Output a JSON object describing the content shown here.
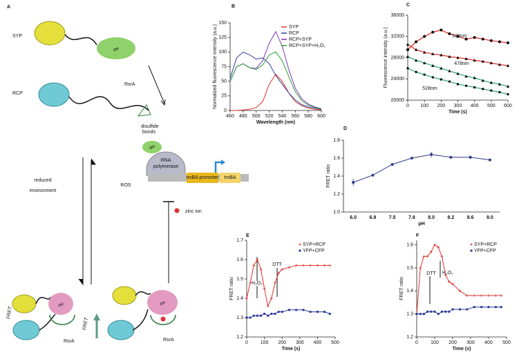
{
  "diagram": {
    "label": "A",
    "syp": "SYP",
    "rcp": "RCP",
    "sigma": "σᴿ",
    "rsra": "RsrA",
    "disulfide": [
      "disulfide",
      "bonds"
    ],
    "polymerase": [
      "RNA",
      "polymerase"
    ],
    "promoter": "trxBA promoter",
    "gene": "trxBA",
    "reduced": [
      "reduced",
      "environment"
    ],
    "ros": "ROS",
    "fret": "FRET",
    "zinc": "zinc ion"
  },
  "chart_data": [
    {
      "label": "B",
      "type": "line",
      "xlabel": "Wavelength (nm)",
      "ylabel": "Normalized fluorescence intensity (a.u.)",
      "x": [
        460,
        470,
        480,
        490,
        500,
        510,
        520,
        530,
        540,
        550,
        560,
        570,
        580,
        590,
        600
      ],
      "xlim": [
        460,
        600
      ],
      "xticks": [
        460,
        480,
        500,
        520,
        540,
        560,
        580,
        600
      ],
      "ylim": [
        0,
        150
      ],
      "yticks": [
        0,
        25,
        50,
        75,
        100,
        125,
        150
      ],
      "legend": "upper right",
      "series": [
        {
          "name": "SYP",
          "color": "#e0302a",
          "values": [
            0,
            0,
            1,
            2,
            5,
            15,
            45,
            62,
            50,
            30,
            15,
            8,
            4,
            2,
            1
          ]
        },
        {
          "name": "RCP",
          "color": "#2b3b9a",
          "values": [
            55,
            90,
            100,
            95,
            88,
            90,
            80,
            60,
            45,
            30,
            18,
            10,
            6,
            4,
            2
          ]
        },
        {
          "name": "RCP+SYP",
          "color": "#7a35b8",
          "values": [
            50,
            75,
            80,
            73,
            72,
            85,
            115,
            135,
            110,
            70,
            38,
            20,
            11,
            6,
            3
          ]
        },
        {
          "name": "RCP+SYP+H₂O₂",
          "color": "#2a9a3a",
          "values": [
            50,
            75,
            80,
            73,
            70,
            78,
            95,
            100,
            85,
            58,
            32,
            17,
            9,
            5,
            3
          ]
        }
      ]
    },
    {
      "label": "C",
      "type": "line",
      "xlabel": "Time (s)",
      "ylabel": "Fluorescence intensity (a.u.)",
      "x": [
        0,
        50,
        100,
        150,
        200,
        250,
        300,
        350,
        400,
        450,
        500,
        550,
        600
      ],
      "xlim": [
        0,
        600
      ],
      "xticks": [
        0,
        100,
        200,
        300,
        400,
        500,
        600
      ],
      "ylim": [
        20000,
        36000
      ],
      "yticks": [
        20000,
        24000,
        28000,
        32000,
        36000
      ],
      "marker_color": "#000000",
      "annotations": [
        "528nm",
        "478nm",
        "528nm"
      ],
      "series": [
        {
          "color": "#e0302a",
          "marker": "circle",
          "values": [
            29500,
            31000,
            32000,
            32800,
            33200,
            32500,
            32000,
            31500,
            31800,
            31500,
            31200,
            31000,
            30800
          ]
        },
        {
          "color": "#e0302a",
          "marker": "triangle",
          "values": [
            30500,
            29500,
            29000,
            28700,
            28500,
            28200,
            28000,
            27800,
            27500,
            27300,
            27000,
            26700,
            26500
          ]
        },
        {
          "color": "#3aa87a",
          "marker": "triangle",
          "values": [
            28200,
            27500,
            27000,
            26500,
            26000,
            25500,
            25000,
            24500,
            24200,
            23700,
            23300,
            23000,
            22600
          ]
        },
        {
          "color": "#3aa87a",
          "marker": "square",
          "values": [
            26000,
            25300,
            24800,
            24300,
            23900,
            23500,
            23000,
            22700,
            22400,
            22100,
            21800,
            21500,
            21100
          ]
        }
      ]
    },
    {
      "label": "D",
      "type": "line",
      "xlabel": "pH",
      "ylabel": "FRET ratio",
      "categories": [
        "6.0",
        "6.9",
        "7.5",
        "7.8",
        "8.0",
        "8.2",
        "8.6",
        "9.0"
      ],
      "values": [
        1.33,
        1.41,
        1.53,
        1.6,
        1.64,
        1.61,
        1.61,
        1.58
      ],
      "error": [
        0.04,
        0.01,
        0.01,
        0.01,
        0.03,
        0.01,
        0.02,
        0.01
      ],
      "color": "#2e3a87",
      "marker": "circle",
      "ylim": [
        1,
        1.8
      ],
      "yticks": [
        {
          "value": 1,
          "label": "1.0"
        },
        1.2,
        1.4,
        1.6,
        1.8
      ]
    },
    {
      "label": "E",
      "type": "line",
      "xlabel": "Time (s)",
      "ylabel": "FRET ratio",
      "x": [
        0,
        20,
        40,
        60,
        80,
        100,
        120,
        140,
        160,
        180,
        200,
        240,
        280,
        320,
        360,
        400,
        440,
        470
      ],
      "xlim": [
        0,
        500
      ],
      "xticks": [
        0,
        100,
        200,
        300,
        400,
        500
      ],
      "ylim": [
        1.2,
        1.7
      ],
      "yticks": [
        1.2,
        1.3,
        1.4,
        1.5,
        1.6,
        1.7
      ],
      "legend": "upper right",
      "annotations": [
        "H₂O₂",
        "DTT"
      ],
      "series": [
        {
          "name": "SYP+RCP",
          "color": "#e0302a",
          "marker": "cross",
          "values": [
            1.4,
            1.48,
            1.57,
            1.6,
            1.55,
            1.45,
            1.36,
            1.4,
            1.48,
            1.53,
            1.55,
            1.56,
            1.57,
            1.57,
            1.57,
            1.57,
            1.57,
            1.57
          ]
        },
        {
          "name": "YFP+CFP",
          "color": "#2b3b9a",
          "marker": "square",
          "values": [
            1.3,
            1.3,
            1.31,
            1.31,
            1.31,
            1.32,
            1.31,
            1.32,
            1.32,
            1.33,
            1.33,
            1.34,
            1.34,
            1.34,
            1.33,
            1.33,
            1.33,
            1.32
          ]
        }
      ]
    },
    {
      "label": "F",
      "type": "line",
      "xlabel": "Time (s)",
      "ylabel": "FRET ratio",
      "x": [
        0,
        20,
        40,
        60,
        80,
        100,
        120,
        140,
        160,
        180,
        200,
        240,
        280,
        320,
        360,
        400,
        440,
        470
      ],
      "xlim": [
        0,
        500
      ],
      "xticks": [
        0,
        100,
        200,
        300,
        400,
        500
      ],
      "ylim": [
        1.2,
        1.62
      ],
      "yticks": [
        1.2,
        1.3,
        1.4,
        1.5,
        1.6
      ],
      "legend": "upper right",
      "annotations": [
        "DTT",
        "H₂O₂"
      ],
      "series": [
        {
          "name": "SYP+RCP",
          "color": "#e0302a",
          "marker": "cross",
          "values": [
            1.3,
            1.5,
            1.55,
            1.55,
            1.57,
            1.6,
            1.59,
            1.55,
            1.47,
            1.44,
            1.43,
            1.4,
            1.38,
            1.38,
            1.38,
            1.38,
            1.38,
            1.38
          ]
        },
        {
          "name": "YFP+CFP",
          "color": "#2b3b9a",
          "marker": "square",
          "values": [
            1.3,
            1.3,
            1.3,
            1.31,
            1.31,
            1.31,
            1.3,
            1.31,
            1.31,
            1.31,
            1.32,
            1.32,
            1.32,
            1.33,
            1.33,
            1.33,
            1.33,
            1.33
          ]
        }
      ]
    }
  ]
}
